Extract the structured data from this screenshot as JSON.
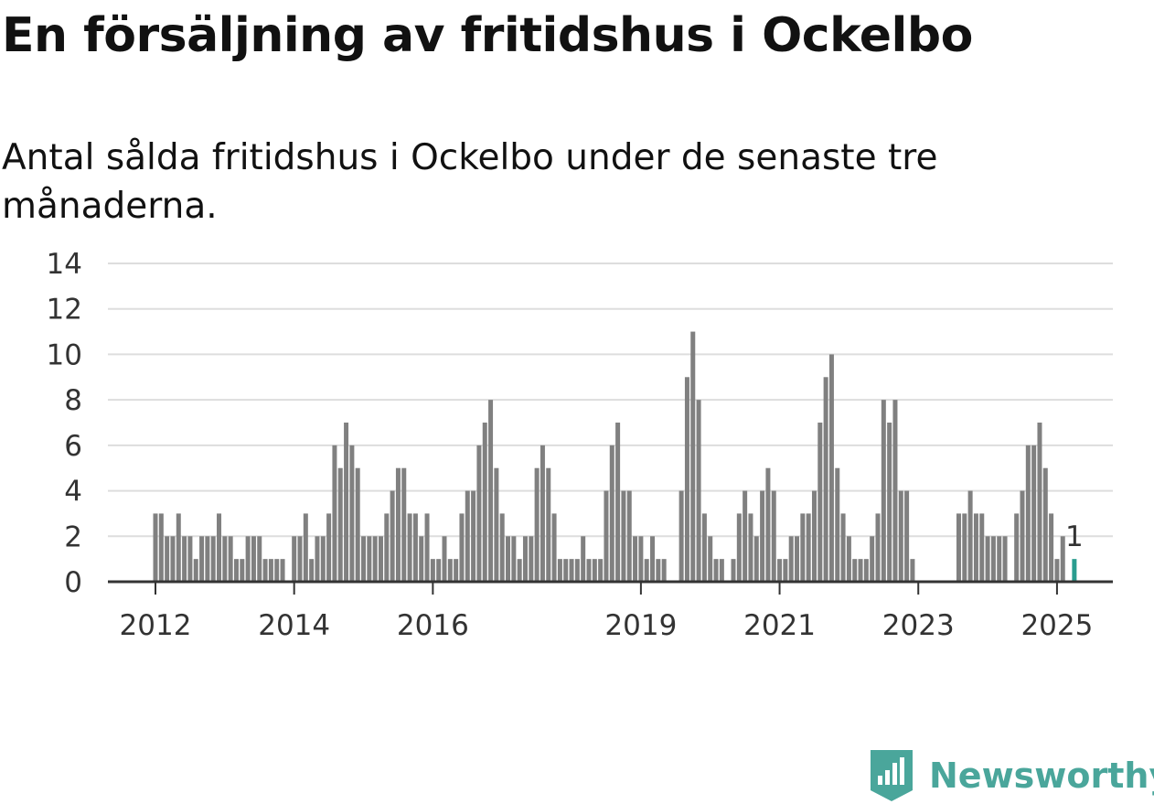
{
  "title": "En försäljning av fritidshus i Ockelbo",
  "subtitle": "Antal sålda fritidshus i Ockelbo under de senaste tre månaderna.",
  "brand": {
    "name": "Newsworthy",
    "icon": "bar-chart-logo-icon",
    "color": "#4aa69b"
  },
  "colors": {
    "bar": "#808080",
    "highlight": "#2a9d8f",
    "grid": "#dddddd",
    "axis": "#333333"
  },
  "chart_data": {
    "type": "bar",
    "ylim": [
      0,
      14
    ],
    "yticks": [
      0,
      2,
      4,
      6,
      8,
      10,
      12,
      14
    ],
    "xtick_labels": [
      "2012",
      "2014",
      "2016",
      "2019",
      "2021",
      "2023",
      "2025"
    ],
    "xtick_indices": [
      0,
      24,
      48,
      84,
      108,
      132,
      156
    ],
    "start_label": "2012",
    "grid": true,
    "highlight_label": "1",
    "values": [
      3,
      3,
      2,
      2,
      3,
      2,
      2,
      1,
      2,
      2,
      2,
      3,
      2,
      2,
      1,
      1,
      2,
      2,
      2,
      1,
      1,
      1,
      1,
      0,
      2,
      2,
      3,
      1,
      2,
      2,
      3,
      6,
      5,
      7,
      6,
      5,
      2,
      2,
      2,
      2,
      3,
      4,
      5,
      5,
      3,
      3,
      2,
      3,
      1,
      1,
      2,
      1,
      1,
      3,
      4,
      4,
      6,
      7,
      8,
      5,
      3,
      2,
      2,
      1,
      2,
      2,
      5,
      6,
      5,
      3,
      1,
      1,
      1,
      1,
      2,
      1,
      1,
      1,
      4,
      6,
      7,
      4,
      4,
      2,
      2,
      1,
      2,
      1,
      1,
      0,
      0,
      4,
      9,
      11,
      8,
      3,
      2,
      1,
      1,
      0,
      1,
      3,
      4,
      3,
      2,
      4,
      5,
      4,
      1,
      1,
      2,
      2,
      3,
      3,
      4,
      7,
      9,
      10,
      5,
      3,
      2,
      1,
      1,
      1,
      2,
      3,
      8,
      7,
      8,
      4,
      4,
      1,
      0,
      0,
      0,
      0,
      0,
      0,
      0,
      3,
      3,
      4,
      3,
      3,
      2,
      2,
      2,
      2,
      0,
      3,
      4,
      6,
      6,
      7,
      5,
      3,
      1,
      2,
      0,
      1
    ]
  }
}
